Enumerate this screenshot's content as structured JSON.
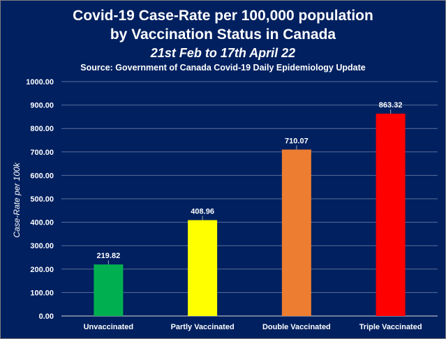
{
  "chart_data": {
    "type": "bar",
    "title": "Covid-19 Case-Rate per 100,000 population",
    "title_line2": "by Vaccination Status in Canada",
    "subtitle": "21st Feb to 17th April 22",
    "source": "Source: Government of Canada Covid-19 Daily Epidemiology Update",
    "xlabel": "",
    "ylabel": "Case-Rate per 100k",
    "ylim": [
      0,
      1000
    ],
    "yticks": [
      "0.00",
      "100.00",
      "200.00",
      "300.00",
      "400.00",
      "500.00",
      "600.00",
      "700.00",
      "800.00",
      "900.00",
      "1000.00"
    ],
    "categories": [
      "Unvaccinated",
      "Partly Vaccinated",
      "Double Vaccinated",
      "Triple Vaccinated"
    ],
    "values": [
      219.82,
      408.96,
      710.07,
      863.32
    ],
    "value_labels": [
      "219.82",
      "408.96",
      "710.07",
      "863.32"
    ],
    "colors": [
      "#00b050",
      "#ffff00",
      "#ed7d31",
      "#ff0000"
    ],
    "background": "#002060",
    "grid": true,
    "legend": "none"
  }
}
